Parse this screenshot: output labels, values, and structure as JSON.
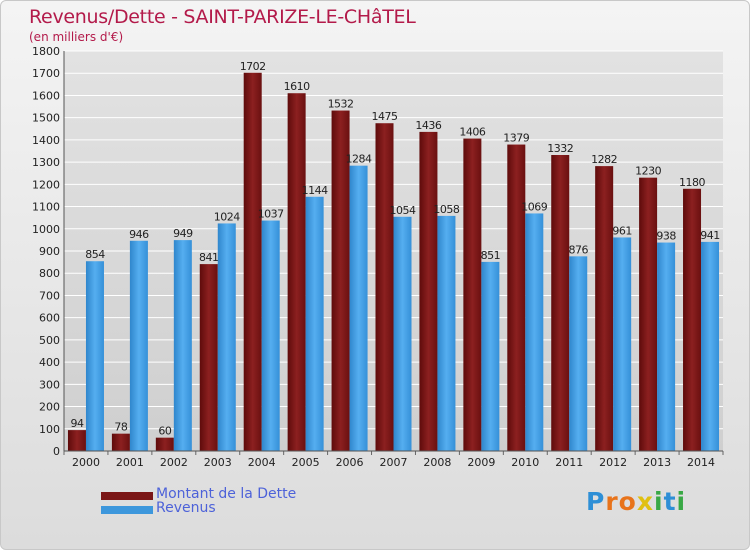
{
  "title": "Revenus/Dette - SAINT-PARIZE-LE-CHâTEL",
  "subtitle": "(en milliers d'€)",
  "logo": {
    "letters": [
      "P",
      "r",
      "o",
      "x",
      "i",
      "t",
      "i"
    ],
    "colors": [
      "#2e8fd6",
      "#e8731a",
      "#e8731a",
      "#e0c010",
      "#39a845",
      "#2e8fd6",
      "#39a845"
    ]
  },
  "colors": {
    "dette": "#7a1515",
    "revenus": "#3d97dc",
    "axis_text": "#222222",
    "grid": "#ffffff"
  },
  "chart_data": {
    "type": "bar",
    "title": "Revenus/Dette - SAINT-PARIZE-LE-CHâTEL",
    "subtitle": "(en milliers d'€)",
    "categories": [
      "2000",
      "2001",
      "2002",
      "2003",
      "2004",
      "2005",
      "2006",
      "2007",
      "2008",
      "2009",
      "2010",
      "2011",
      "2012",
      "2013",
      "2014"
    ],
    "series": [
      {
        "name": "Montant de la Dette",
        "values": [
          94,
          78,
          60,
          841,
          1702,
          1610,
          1532,
          1475,
          1436,
          1406,
          1379,
          1332,
          1282,
          1230,
          1180
        ]
      },
      {
        "name": "Revenus",
        "values": [
          854,
          946,
          949,
          1024,
          1037,
          1144,
          1284,
          1054,
          1058,
          851,
          1069,
          876,
          961,
          938,
          941
        ]
      }
    ],
    "yticks": [
      "0",
      "100",
      "200",
      "300",
      "400",
      "500",
      "600",
      "700",
      "800",
      "900",
      "1000",
      "1100",
      "1200",
      "1300",
      "1400",
      "1500",
      "1600",
      "1700",
      "1800"
    ],
    "ylim": [
      0,
      1800
    ],
    "grid": true,
    "legend_position": "bottom-left"
  }
}
